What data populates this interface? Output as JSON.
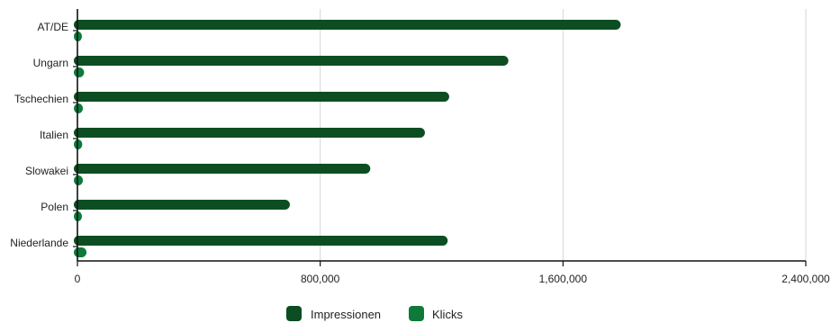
{
  "chart_data": {
    "type": "bar",
    "orientation": "horizontal",
    "categories": [
      "AT/DE",
      "Ungarn",
      "Tschechien",
      "Italien",
      "Slowakei",
      "Polen",
      "Niederlande"
    ],
    "series": [
      {
        "name": "Impressionen",
        "values": [
          1790000,
          1420000,
          1225000,
          1145000,
          965000,
          700000,
          1220000
        ],
        "color": "#0d4d22"
      },
      {
        "name": "Klicks",
        "values": [
          12000,
          22000,
          18000,
          16000,
          18000,
          10000,
          30000
        ],
        "color": "#0d7a3a"
      }
    ],
    "x_ticks": [
      "0",
      "800,000",
      "1,600,000",
      "2,400,000"
    ],
    "xlim": [
      0,
      2400000
    ],
    "grid": "vertical",
    "legend": "bottom-center",
    "title": "",
    "xlabel": "",
    "ylabel": ""
  }
}
